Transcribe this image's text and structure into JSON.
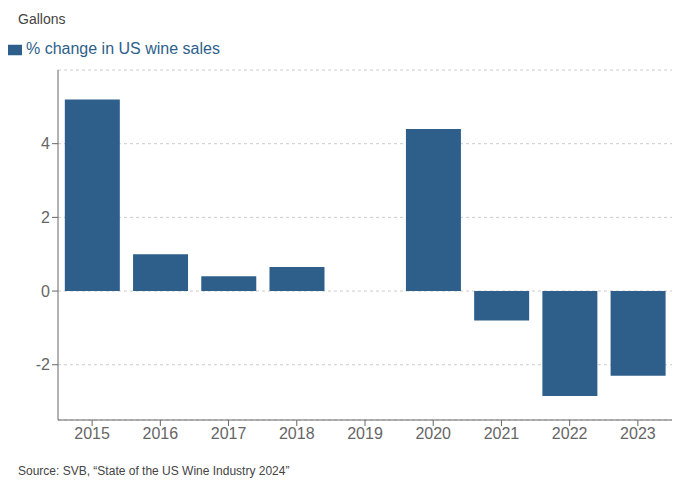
{
  "chart_data": {
    "type": "bar",
    "ylabel": "Gallons",
    "categories": [
      2015,
      2016,
      2017,
      2018,
      2019,
      2020,
      2021,
      2022,
      2023
    ],
    "series": [
      {
        "name": "% change in US wine sales",
        "color": "#2E5F8A",
        "values": [
          5.2,
          1.0,
          0.4,
          0.65,
          0.0,
          4.4,
          -0.8,
          -2.85,
          -2.3
        ]
      }
    ],
    "ylim": [
      -3.5,
      6.0
    ],
    "yticks": [
      -2,
      0,
      2,
      4
    ],
    "grid": true,
    "legend": "upper left",
    "annotations": [
      "Source: SVB, “State of the US Wine Industry 2024”"
    ]
  }
}
